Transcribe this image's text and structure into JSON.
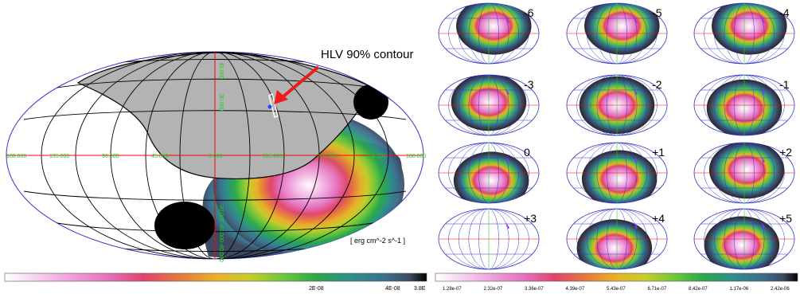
{
  "left_panel": {
    "annotation": "HLV 90% contour",
    "unit_label": "[ erg cm^-2 s^-1 ]",
    "lon_labels": [
      "180.000",
      "135.000",
      "90.000",
      "45.000",
      "0.000",
      "315.000",
      "270.000",
      "225.000",
      "180.000"
    ],
    "lat_labels": [
      "45.000",
      "30.000",
      "-30.000",
      "-45.000",
      "-60.000"
    ],
    "colorbar_ticks": [
      "2E-08",
      "4E-08",
      "3.8E"
    ]
  },
  "right_panel": {
    "panels": [
      {
        "label": "-6"
      },
      {
        "label": "-5"
      },
      {
        "label": "-4"
      },
      {
        "label": "-3"
      },
      {
        "label": "-2"
      },
      {
        "label": "-1"
      },
      {
        "label": "0"
      },
      {
        "label": "+1"
      },
      {
        "label": "+2"
      },
      {
        "label": "+3"
      },
      {
        "label": "+4"
      },
      {
        "label": "+5"
      }
    ],
    "colorbar_ticks": [
      "1.28e-07",
      "2.32e-07",
      "3.36e-07",
      "4.39e-07",
      "5.43e-07",
      "6.71e-07",
      "8.42e-07",
      "1.17e-06",
      "2.42e-06"
    ]
  },
  "colors": {
    "grid": "#000000",
    "outline": "#3333cc",
    "label_green": "#22cc22",
    "equator": "#ff0000",
    "arrow": "#ee1c1c",
    "cap_gray": "#b3b3b3",
    "blob_black": "#000000",
    "colormap": [
      "#ffffff",
      "#f2b6e6",
      "#e673c4",
      "#e0456a",
      "#e67d3a",
      "#e8b12a",
      "#c9cc29",
      "#6ec83a",
      "#2aa84a",
      "#2e8f8a",
      "#3d6f8e",
      "#3c4b62",
      "#262626"
    ]
  }
}
